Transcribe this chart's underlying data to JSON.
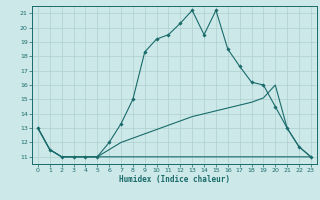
{
  "xlabel": "Humidex (Indice chaleur)",
  "ylabel": "",
  "background_color": "#cde8e8",
  "grid_color": "#aed0d0",
  "line_color": "#1a6b6b",
  "xlim": [
    -0.5,
    23.5
  ],
  "ylim": [
    10.5,
    21.5
  ],
  "yticks": [
    11,
    12,
    13,
    14,
    15,
    16,
    17,
    18,
    19,
    20,
    21
  ],
  "xticks": [
    0,
    1,
    2,
    3,
    4,
    5,
    6,
    7,
    8,
    9,
    10,
    11,
    12,
    13,
    14,
    15,
    16,
    17,
    18,
    19,
    20,
    21,
    22,
    23
  ],
  "series": [
    {
      "x": [
        0,
        1,
        2,
        3,
        4,
        5,
        6,
        7,
        8,
        9,
        10,
        11,
        12,
        13,
        14,
        15,
        16,
        17,
        18,
        19,
        20,
        21,
        22,
        23
      ],
      "y": [
        13,
        11.5,
        11,
        11,
        11,
        11,
        11,
        11,
        11,
        11,
        11,
        11,
        11,
        11,
        11,
        11,
        11,
        11,
        11,
        11,
        11,
        11,
        11,
        11
      ],
      "marker": false
    },
    {
      "x": [
        0,
        1,
        2,
        3,
        4,
        5,
        6,
        7,
        8,
        9,
        10,
        11,
        12,
        13,
        14,
        15,
        16,
        17,
        18,
        19,
        20,
        21,
        22,
        23
      ],
      "y": [
        13,
        11.5,
        11,
        11,
        11,
        11,
        11.5,
        12,
        12.3,
        12.6,
        12.9,
        13.2,
        13.5,
        13.8,
        14.0,
        14.2,
        14.4,
        14.6,
        14.8,
        15.1,
        16.0,
        13.0,
        11.7,
        11
      ],
      "marker": false
    },
    {
      "x": [
        0,
        1,
        2,
        3,
        4,
        5,
        6,
        7,
        8,
        9,
        10,
        11,
        12,
        13,
        14,
        15,
        16,
        17,
        18,
        19,
        20,
        21,
        22,
        23
      ],
      "y": [
        13,
        11.5,
        11,
        11,
        11,
        11,
        12,
        13.3,
        15.0,
        18.3,
        19.2,
        19.5,
        20.3,
        21.2,
        19.5,
        21.2,
        18.5,
        17.3,
        16.2,
        16.0,
        14.5,
        13.0,
        11.7,
        11
      ],
      "marker": true
    }
  ]
}
